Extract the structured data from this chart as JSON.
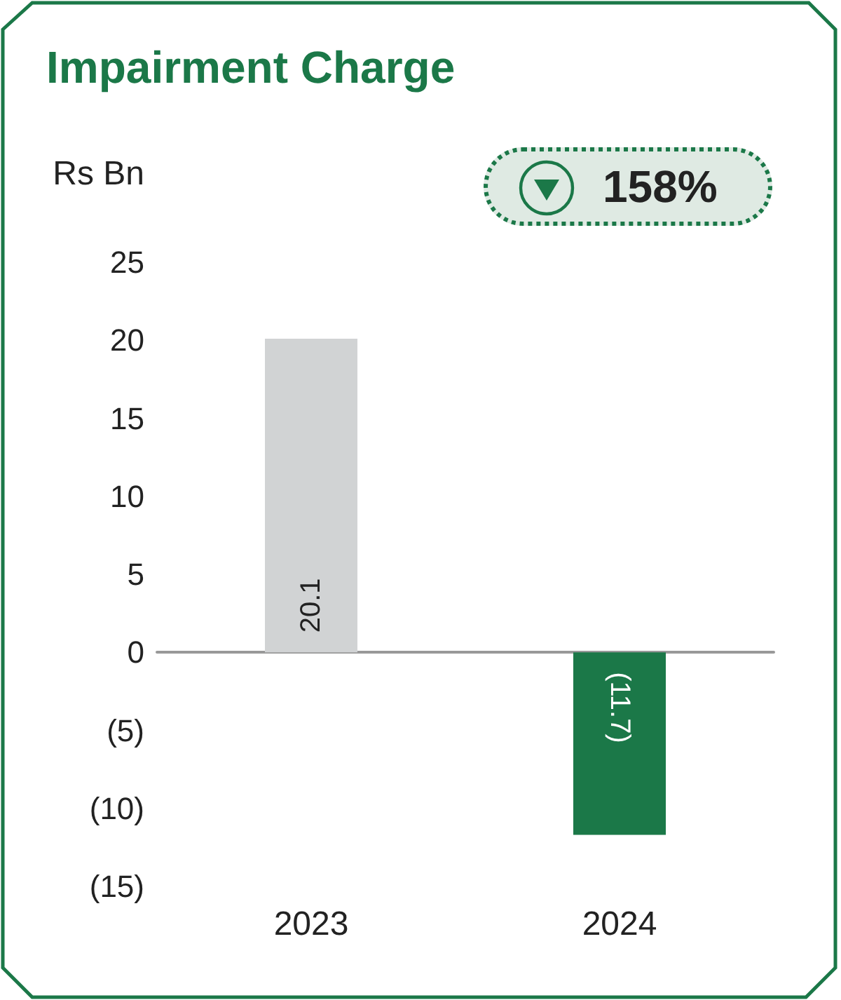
{
  "chart_data": {
    "type": "bar",
    "title": "Impairment Charge",
    "ylabel": "Rs Bn",
    "categories": [
      "2023",
      "2024"
    ],
    "values": [
      20.1,
      -11.7
    ],
    "colors": [
      "#d1d3d4",
      "#1b7848"
    ],
    "value_labels": [
      "20.1",
      "(11.7)"
    ],
    "ylim": [
      -15,
      25
    ],
    "yticks": [
      {
        "value": -15,
        "label": "(15)"
      },
      {
        "value": -10,
        "label": "(10)"
      },
      {
        "value": -5,
        "label": "(5)"
      },
      0,
      5,
      10,
      15,
      20,
      25
    ],
    "annotations": [
      "158%"
    ]
  }
}
